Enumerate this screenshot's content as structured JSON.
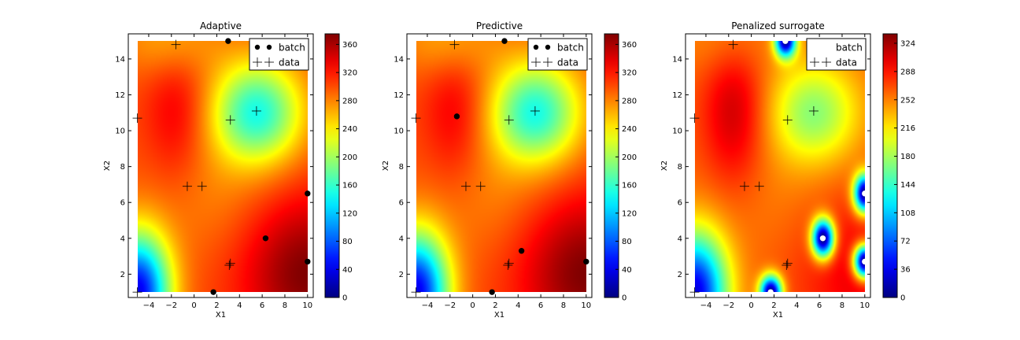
{
  "chart_data": [
    {
      "type": "heatmap",
      "title": "Adaptive",
      "xlabel": "X1",
      "ylabel": "X2",
      "xlim": [
        -5.8,
        10.5
      ],
      "ylim": [
        0.7,
        15.4
      ],
      "xticks": [
        -4,
        -2,
        0,
        2,
        4,
        6,
        8,
        10
      ],
      "yticks": [
        2,
        4,
        6,
        8,
        10,
        12,
        14
      ],
      "surface_range": [
        -5,
        10,
        1,
        15
      ],
      "colorbar": {
        "ticks": [
          0,
          40,
          80,
          120,
          160,
          200,
          240,
          280,
          320,
          360
        ],
        "vmax": 375
      },
      "field": {
        "base": 300,
        "components": [
          {
            "cx": 10,
            "cy": 2.0,
            "sx": 4.0,
            "sy": 3.0,
            "a": 75
          },
          {
            "cx": -1.5,
            "cy": 11.0,
            "sx": 2.0,
            "sy": 3.0,
            "a": 35
          },
          {
            "cx": 5.5,
            "cy": 11.0,
            "sx": 2.8,
            "sy": 2.0,
            "a": -150
          },
          {
            "cx": -5,
            "cy": 1.0,
            "sx": 2.0,
            "sy": 2.3,
            "a": -260
          },
          {
            "cx": 1.0,
            "cy": 6.5,
            "sx": 3.5,
            "sy": 2.5,
            "a": -20
          },
          {
            "cx": -2.0,
            "cy": 15.0,
            "sx": 3.0,
            "sy": 1.5,
            "a": -40
          }
        ]
      },
      "legend": {
        "entries": [
          "batch",
          "data"
        ],
        "position": "upper right"
      },
      "series": [
        {
          "name": "batch",
          "marker": "dot",
          "color": "#000000",
          "x": [
            3.0,
            10.0,
            6.3,
            10.0,
            1.7
          ],
          "y": [
            15.0,
            6.5,
            4.0,
            2.7,
            1.0
          ]
        },
        {
          "name": "data",
          "marker": "plus",
          "x": [
            -1.6,
            -5.0,
            3.2,
            5.5,
            -0.6,
            0.7,
            3.2,
            3.1,
            -5.0
          ],
          "y": [
            14.8,
            10.7,
            10.6,
            11.1,
            6.9,
            6.9,
            2.6,
            2.5,
            1.0
          ]
        }
      ]
    },
    {
      "type": "heatmap",
      "title": "Predictive",
      "xlabel": "X1",
      "ylabel": "X2",
      "xlim": [
        -5.8,
        10.5
      ],
      "ylim": [
        0.7,
        15.4
      ],
      "xticks": [
        -4,
        -2,
        0,
        2,
        4,
        6,
        8,
        10
      ],
      "yticks": [
        2,
        4,
        6,
        8,
        10,
        12,
        14
      ],
      "surface_range": [
        -5,
        10,
        1,
        15
      ],
      "colorbar": {
        "ticks": [
          0,
          40,
          80,
          120,
          160,
          200,
          240,
          280,
          320,
          360
        ],
        "vmax": 375
      },
      "field": {
        "base": 300,
        "components": [
          {
            "cx": 10,
            "cy": 2.0,
            "sx": 4.0,
            "sy": 3.0,
            "a": 75
          },
          {
            "cx": -1.5,
            "cy": 11.0,
            "sx": 2.0,
            "sy": 3.0,
            "a": 35
          },
          {
            "cx": 5.5,
            "cy": 11.0,
            "sx": 2.8,
            "sy": 2.0,
            "a": -150
          },
          {
            "cx": -5,
            "cy": 1.0,
            "sx": 2.0,
            "sy": 2.3,
            "a": -260
          },
          {
            "cx": 1.0,
            "cy": 6.5,
            "sx": 3.5,
            "sy": 2.5,
            "a": -20
          },
          {
            "cx": -2.0,
            "cy": 15.0,
            "sx": 3.0,
            "sy": 1.5,
            "a": -40
          }
        ]
      },
      "legend": {
        "entries": [
          "batch",
          "data"
        ],
        "position": "upper right"
      },
      "series": [
        {
          "name": "batch",
          "marker": "dot",
          "color": "#000000",
          "x": [
            2.8,
            -1.4,
            4.3,
            10.0,
            1.7
          ],
          "y": [
            15.0,
            10.8,
            3.3,
            2.7,
            1.0
          ]
        },
        {
          "name": "data",
          "marker": "plus",
          "x": [
            -1.6,
            -5.0,
            3.2,
            5.5,
            -0.6,
            0.7,
            3.2,
            3.1,
            -5.0
          ],
          "y": [
            14.8,
            10.7,
            10.6,
            11.1,
            6.9,
            6.9,
            2.6,
            2.5,
            1.0
          ]
        }
      ]
    },
    {
      "type": "heatmap",
      "title": "Penalized surrogate",
      "xlabel": "X1",
      "ylabel": "X2",
      "xlim": [
        -5.8,
        10.5
      ],
      "ylim": [
        0.7,
        15.4
      ],
      "xticks": [
        -4,
        -2,
        0,
        2,
        4,
        6,
        8,
        10
      ],
      "yticks": [
        2,
        4,
        6,
        8,
        10,
        12,
        14
      ],
      "surface_range": [
        -5,
        10,
        1,
        15
      ],
      "colorbar": {
        "ticks": [
          0,
          36,
          72,
          108,
          144,
          180,
          216,
          252,
          288,
          324
        ],
        "vmax": 336
      },
      "field": {
        "base": 262,
        "components": [
          {
            "cx": 10,
            "cy": 2.0,
            "sx": 4.0,
            "sy": 3.0,
            "a": 40
          },
          {
            "cx": -1.5,
            "cy": 11.0,
            "sx": 2.0,
            "sy": 3.0,
            "a": 50
          },
          {
            "cx": 5.5,
            "cy": 11.0,
            "sx": 2.8,
            "sy": 2.0,
            "a": -90
          },
          {
            "cx": -5,
            "cy": 1.0,
            "sx": 2.0,
            "sy": 2.3,
            "a": -230
          },
          {
            "cx": 1.0,
            "cy": 6.5,
            "sx": 3.5,
            "sy": 2.5,
            "a": -10
          },
          {
            "cx": -2.0,
            "cy": 15.0,
            "sx": 3.0,
            "sy": 1.5,
            "a": -20
          }
        ],
        "penalties": [
          {
            "cx": 3.0,
            "cy": 15.0,
            "sx": 0.9,
            "sy": 0.9
          },
          {
            "cx": 10.0,
            "cy": 6.5,
            "sx": 0.95,
            "sy": 1.05
          },
          {
            "cx": 6.3,
            "cy": 4.0,
            "sx": 0.95,
            "sy": 1.05
          },
          {
            "cx": 10.0,
            "cy": 2.7,
            "sx": 0.95,
            "sy": 0.9
          },
          {
            "cx": 1.7,
            "cy": 1.0,
            "sx": 0.95,
            "sy": 0.9
          }
        ]
      },
      "legend": {
        "entries": [
          "batch",
          "data"
        ],
        "position": "upper right"
      },
      "series": [
        {
          "name": "batch",
          "marker": "dot",
          "color": "#ffffff",
          "x": [
            3.0,
            10.0,
            6.3,
            10.0,
            1.7
          ],
          "y": [
            15.0,
            6.5,
            4.0,
            2.7,
            1.0
          ]
        },
        {
          "name": "data",
          "marker": "plus",
          "x": [
            -1.6,
            -5.0,
            3.2,
            5.5,
            -0.6,
            0.7,
            3.2,
            3.1,
            -5.0
          ],
          "y": [
            14.8,
            10.7,
            10.6,
            11.1,
            6.9,
            6.9,
            2.6,
            2.5,
            1.0
          ]
        }
      ]
    }
  ]
}
